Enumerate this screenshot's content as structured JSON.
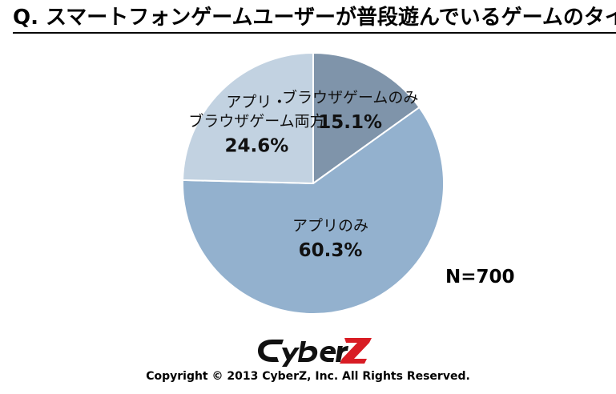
{
  "chart_data": {
    "type": "pie",
    "title": "Q. スマートフォンゲームユーザーが普段遊んでいるゲームのタイプ",
    "slices": [
      {
        "label_lines": [
          "ブラウザゲームのみ"
        ],
        "value": 15.1,
        "value_text": "15.1%",
        "color": "#7f94aa"
      },
      {
        "label_lines": [
          "アプリのみ"
        ],
        "value": 60.3,
        "value_text": "60.3%",
        "color": "#93b1ce"
      },
      {
        "label_lines": [
          "アプリ・",
          "ブラウザゲーム両方"
        ],
        "value": 24.6,
        "value_text": "24.6%",
        "color": "#c2d2e1"
      }
    ],
    "n_label": "N=700",
    "start_angle_deg": 0,
    "direction": "clockwise"
  },
  "logo": {
    "text": "CyberZ",
    "color_main": "#111111",
    "color_accent": "#d81c24"
  },
  "copyright": "Copyright © 2013 CyberZ, Inc.  All Rights Reserved."
}
